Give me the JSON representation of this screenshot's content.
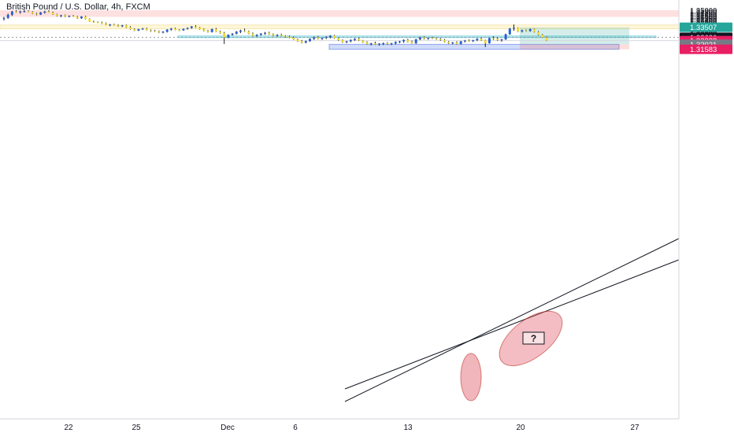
{
  "chart_data": {
    "type": "candlestick",
    "title": "British Pound / U.S. Dollar, 4h, FXCM",
    "x_tick_labels": [
      "22",
      "25",
      "Dec",
      "6",
      "13",
      "20",
      "27"
    ],
    "y_tick_labels": [
      "1.35000",
      "1.34900",
      "1.34800",
      "1.34700",
      "1.34600",
      "1.34500",
      "1.34400",
      "1.34300",
      "1.34200",
      "1.34100",
      "1.34000",
      "1.33900",
      "1.33800",
      "1.33700",
      "1.33600",
      "1.33500",
      "1.33400",
      "1.33300",
      "1.33200",
      "1.33100",
      "1.33000",
      "1.32900",
      "1.32800",
      "1.32700",
      "1.32600",
      "1.32500",
      "1.32400",
      "1.32300",
      "1.32200",
      "1.32100",
      "1.32000",
      "1.31900",
      "1.31800",
      "1.31700",
      "1.31600",
      "1.31500"
    ],
    "ylim": [
      1.3145,
      1.3505
    ],
    "price_labels": [
      {
        "value": 1.33507,
        "text": "1.33507",
        "color": "#26a69a"
      },
      {
        "value": 1.3263,
        "text": "1.32630",
        "color": "#131722"
      },
      {
        "value": 1.32338,
        "text": "1.32338",
        "color": "#e91e63"
      },
      {
        "value": 1.32021,
        "text": "1.32021",
        "color": "#787b86"
      },
      {
        "value": 1.31583,
        "text": "1.31583",
        "color": "#e91e63"
      }
    ],
    "zones": [
      {
        "name": "supply",
        "from": 1.3442,
        "to": 1.35,
        "color": "#fde0e0"
      },
      {
        "name": "resistance",
        "from": 1.3337,
        "to": 1.3371,
        "color": "#fff6d9"
      },
      {
        "name": "key-level",
        "from": 1.3261,
        "to": 1.3274,
        "color": "#d4f0f4"
      },
      {
        "name": "demand",
        "from": 1.3158,
        "to": 1.3202,
        "color": "#d0dcfa"
      }
    ],
    "position": {
      "entry": 1.32021,
      "target": 1.33507,
      "stop": 1.31583
    },
    "annotation_text": "?",
    "colors": {
      "up": "#2a62d4",
      "down": "#f2dc3c",
      "wick": "#222222"
    },
    "candles": [
      [
        1.3425,
        1.3442,
        1.341,
        1.3432
      ],
      [
        1.3432,
        1.347,
        1.3425,
        1.346
      ],
      [
        1.346,
        1.3495,
        1.345,
        1.3488
      ],
      [
        1.3488,
        1.35,
        1.3478,
        1.3482
      ],
      [
        1.3482,
        1.3496,
        1.347,
        1.349
      ],
      [
        1.349,
        1.3505,
        1.348,
        1.3492
      ],
      [
        1.3492,
        1.35,
        1.3483,
        1.3485
      ],
      [
        1.3485,
        1.3492,
        1.3465,
        1.347
      ],
      [
        1.347,
        1.3478,
        1.3455,
        1.3462
      ],
      [
        1.3462,
        1.3485,
        1.3458,
        1.348
      ],
      [
        1.348,
        1.3495,
        1.347,
        1.3488
      ],
      [
        1.3488,
        1.35,
        1.3478,
        1.348
      ],
      [
        1.348,
        1.3488,
        1.346,
        1.3465
      ],
      [
        1.3465,
        1.347,
        1.3445,
        1.345
      ],
      [
        1.345,
        1.346,
        1.344,
        1.3455
      ],
      [
        1.3455,
        1.3462,
        1.344,
        1.3445
      ],
      [
        1.3445,
        1.3455,
        1.3438,
        1.345
      ],
      [
        1.345,
        1.3458,
        1.344,
        1.3442
      ],
      [
        1.3442,
        1.345,
        1.3425,
        1.343
      ],
      [
        1.343,
        1.3448,
        1.3425,
        1.3445
      ],
      [
        1.3445,
        1.3452,
        1.342,
        1.3425
      ],
      [
        1.3425,
        1.343,
        1.3398,
        1.34
      ],
      [
        1.34,
        1.341,
        1.339,
        1.3395
      ],
      [
        1.3395,
        1.3402,
        1.3388,
        1.3392
      ],
      [
        1.3392,
        1.34,
        1.338,
        1.3385
      ],
      [
        1.3385,
        1.3392,
        1.3368,
        1.3372
      ],
      [
        1.3372,
        1.338,
        1.336,
        1.3375
      ],
      [
        1.3375,
        1.3382,
        1.3365,
        1.3368
      ],
      [
        1.3368,
        1.3375,
        1.3355,
        1.336
      ],
      [
        1.336,
        1.3372,
        1.3352,
        1.3368
      ],
      [
        1.3368,
        1.3374,
        1.3345,
        1.335
      ],
      [
        1.335,
        1.336,
        1.333,
        1.3335
      ],
      [
        1.3335,
        1.3342,
        1.3318,
        1.3322
      ],
      [
        1.3322,
        1.3338,
        1.3318,
        1.3335
      ],
      [
        1.3335,
        1.3345,
        1.3328,
        1.334
      ],
      [
        1.334,
        1.3348,
        1.3322,
        1.3325
      ],
      [
        1.3325,
        1.3332,
        1.3312,
        1.3318
      ],
      [
        1.3318,
        1.3328,
        1.331,
        1.3315
      ],
      [
        1.3315,
        1.3322,
        1.33,
        1.3305
      ],
      [
        1.3305,
        1.3318,
        1.3298,
        1.3312
      ],
      [
        1.3312,
        1.3335,
        1.3305,
        1.333
      ],
      [
        1.333,
        1.3345,
        1.3322,
        1.334
      ],
      [
        1.334,
        1.3348,
        1.3325,
        1.3328
      ],
      [
        1.3328,
        1.3335,
        1.3318,
        1.3325
      ],
      [
        1.3325,
        1.334,
        1.332,
        1.3338
      ],
      [
        1.3338,
        1.335,
        1.333,
        1.3345
      ],
      [
        1.3345,
        1.3362,
        1.3338,
        1.3358
      ],
      [
        1.3358,
        1.337,
        1.3345,
        1.335
      ],
      [
        1.335,
        1.3355,
        1.333,
        1.3335
      ],
      [
        1.3335,
        1.3342,
        1.3315,
        1.332
      ],
      [
        1.332,
        1.3328,
        1.3305,
        1.331
      ],
      [
        1.331,
        1.334,
        1.3305,
        1.3335
      ],
      [
        1.3335,
        1.3345,
        1.331,
        1.3315
      ],
      [
        1.3315,
        1.3322,
        1.3295,
        1.33
      ],
      [
        1.33,
        1.331,
        1.3205,
        1.3262
      ],
      [
        1.3262,
        1.329,
        1.3255,
        1.3285
      ],
      [
        1.3285,
        1.33,
        1.3278,
        1.3295
      ],
      [
        1.3295,
        1.3318,
        1.3288,
        1.3312
      ],
      [
        1.3312,
        1.333,
        1.33,
        1.3322
      ],
      [
        1.3322,
        1.334,
        1.331,
        1.3315
      ],
      [
        1.3315,
        1.3322,
        1.329,
        1.3295
      ],
      [
        1.3295,
        1.3305,
        1.327,
        1.3275
      ],
      [
        1.3275,
        1.329,
        1.3268,
        1.3285
      ],
      [
        1.3285,
        1.33,
        1.3278,
        1.3295
      ],
      [
        1.3295,
        1.331,
        1.3285,
        1.3302
      ],
      [
        1.3302,
        1.3312,
        1.3285,
        1.329
      ],
      [
        1.329,
        1.3298,
        1.3272,
        1.3278
      ],
      [
        1.3278,
        1.329,
        1.3268,
        1.3285
      ],
      [
        1.3285,
        1.3295,
        1.327,
        1.3275
      ],
      [
        1.3275,
        1.3282,
        1.3262,
        1.3268
      ],
      [
        1.3268,
        1.3278,
        1.3255,
        1.326
      ],
      [
        1.326,
        1.327,
        1.324,
        1.3245
      ],
      [
        1.3245,
        1.3252,
        1.3225,
        1.323
      ],
      [
        1.323,
        1.324,
        1.3212,
        1.3218
      ],
      [
        1.3218,
        1.3235,
        1.321,
        1.323
      ],
      [
        1.323,
        1.3255,
        1.3225,
        1.325
      ],
      [
        1.325,
        1.327,
        1.324,
        1.3262
      ],
      [
        1.3262,
        1.3275,
        1.3245,
        1.325
      ],
      [
        1.325,
        1.3262,
        1.324,
        1.3258
      ],
      [
        1.3258,
        1.3272,
        1.3248,
        1.3265
      ],
      [
        1.3265,
        1.3282,
        1.3255,
        1.3278
      ],
      [
        1.3278,
        1.3285,
        1.325,
        1.3255
      ],
      [
        1.3255,
        1.3262,
        1.3232,
        1.3238
      ],
      [
        1.3238,
        1.3245,
        1.3215,
        1.322
      ],
      [
        1.322,
        1.3232,
        1.3212,
        1.3228
      ],
      [
        1.3228,
        1.3245,
        1.322,
        1.324
      ],
      [
        1.324,
        1.3255,
        1.3232,
        1.325
      ],
      [
        1.325,
        1.326,
        1.323,
        1.3235
      ],
      [
        1.3235,
        1.324,
        1.3215,
        1.322
      ],
      [
        1.322,
        1.3228,
        1.32,
        1.3205
      ],
      [
        1.3205,
        1.3215,
        1.3192,
        1.321
      ],
      [
        1.321,
        1.3225,
        1.3195,
        1.32
      ],
      [
        1.32,
        1.3212,
        1.319,
        1.3208
      ],
      [
        1.3208,
        1.3218,
        1.3195,
        1.3212
      ],
      [
        1.3212,
        1.322,
        1.3198,
        1.3205
      ],
      [
        1.3205,
        1.3215,
        1.3195,
        1.321
      ],
      [
        1.321,
        1.3228,
        1.32,
        1.3222
      ],
      [
        1.3222,
        1.3232,
        1.3212,
        1.3228
      ],
      [
        1.3228,
        1.3245,
        1.3215,
        1.324
      ],
      [
        1.324,
        1.325,
        1.322,
        1.3225
      ],
      [
        1.3225,
        1.3235,
        1.3208,
        1.3212
      ],
      [
        1.3212,
        1.325,
        1.3205,
        1.3245
      ],
      [
        1.3245,
        1.3268,
        1.3238,
        1.3262
      ],
      [
        1.3262,
        1.3272,
        1.3245,
        1.3252
      ],
      [
        1.3252,
        1.3262,
        1.3242,
        1.3258
      ],
      [
        1.3258,
        1.3268,
        1.3248,
        1.3255
      ],
      [
        1.3255,
        1.3262,
        1.3242,
        1.3248
      ],
      [
        1.3248,
        1.3258,
        1.3232,
        1.324
      ],
      [
        1.324,
        1.3248,
        1.3218,
        1.3222
      ],
      [
        1.3222,
        1.323,
        1.3205,
        1.321
      ],
      [
        1.321,
        1.3222,
        1.3202,
        1.3218
      ],
      [
        1.3218,
        1.3228,
        1.32,
        1.3205
      ],
      [
        1.3205,
        1.3232,
        1.32,
        1.3228
      ],
      [
        1.3228,
        1.324,
        1.3218,
        1.3235
      ],
      [
        1.3235,
        1.3245,
        1.3225,
        1.323
      ],
      [
        1.323,
        1.3242,
        1.3222,
        1.3238
      ],
      [
        1.3238,
        1.3255,
        1.323,
        1.325
      ],
      [
        1.325,
        1.326,
        1.3232,
        1.3236
      ],
      [
        1.3236,
        1.3242,
        1.3178,
        1.3212
      ],
      [
        1.3212,
        1.326,
        1.3208,
        1.3255
      ],
      [
        1.3255,
        1.3272,
        1.324,
        1.3248
      ],
      [
        1.3248,
        1.3262,
        1.3232,
        1.3238
      ],
      [
        1.3238,
        1.325,
        1.3225,
        1.3245
      ],
      [
        1.3245,
        1.3295,
        1.324,
        1.329
      ],
      [
        1.329,
        1.3345,
        1.3285,
        1.334
      ],
      [
        1.334,
        1.3375,
        1.332,
        1.3345
      ],
      [
        1.3345,
        1.335,
        1.331,
        1.3315
      ],
      [
        1.3315,
        1.333,
        1.3305,
        1.3325
      ],
      [
        1.3325,
        1.3332,
        1.3312,
        1.3318
      ],
      [
        1.3318,
        1.334,
        1.3312,
        1.3335
      ],
      [
        1.3335,
        1.334,
        1.3305,
        1.331
      ],
      [
        1.331,
        1.3318,
        1.328,
        1.3285
      ],
      [
        1.3285,
        1.3292,
        1.3258,
        1.3262
      ],
      [
        1.3262,
        1.327,
        1.323,
        1.3234
      ]
    ]
  }
}
